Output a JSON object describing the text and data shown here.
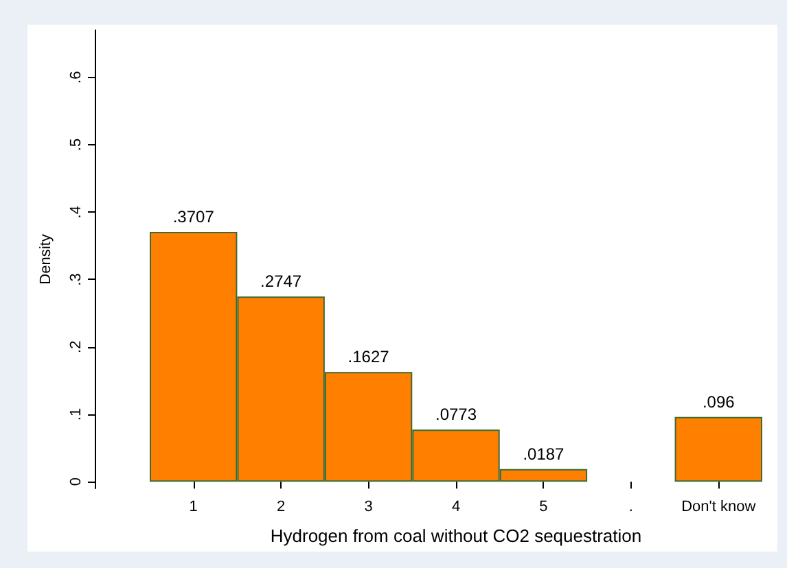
{
  "chart_data": {
    "type": "bar",
    "xlabel": "Hydrogen from coal without CO2 sequestration",
    "ylabel": "Density",
    "categories": [
      "1",
      "2",
      "3",
      "4",
      "5",
      ".",
      "Don't know"
    ],
    "values": [
      0.3707,
      0.2747,
      0.1627,
      0.0773,
      0.0187,
      null,
      0.096
    ],
    "value_labels": [
      ".3707",
      ".2747",
      ".1627",
      ".0773",
      ".0187",
      null,
      ".096"
    ],
    "color": "#ff8000",
    "grid": false,
    "ylim": [
      -0.01,
      0.67
    ],
    "yticks": [
      {
        "value": 0,
        "label": "0"
      },
      {
        "value": 0.1,
        "label": ".1"
      },
      {
        "value": 0.2,
        "label": ".2"
      },
      {
        "value": 0.3,
        "label": ".3"
      },
      {
        "value": 0.4,
        "label": ".4"
      },
      {
        "value": 0.5,
        "label": ".5"
      },
      {
        "value": 0.6,
        "label": ".6"
      }
    ]
  }
}
